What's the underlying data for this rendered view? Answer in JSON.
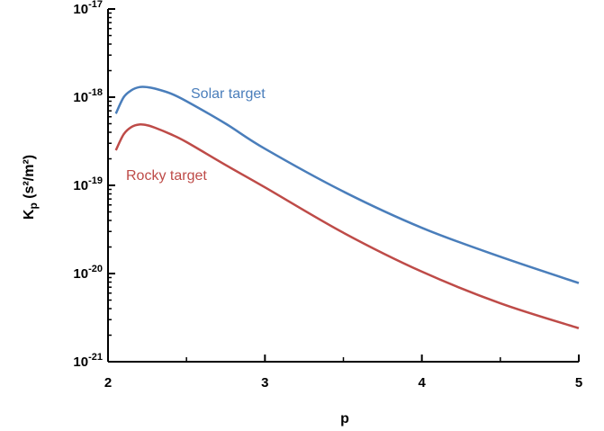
{
  "chart_data": {
    "type": "line",
    "xlabel": "p",
    "ylabel_main": "K",
    "ylabel_sub": "p",
    "ylabel_unit": " (s²/m²)",
    "xlim": [
      2,
      5
    ],
    "ylim": [
      1e-21,
      1e-17
    ],
    "yscale": "log",
    "grid": false,
    "x_ticks": [
      {
        "value": 2,
        "label": "2"
      },
      {
        "value": 3,
        "label": "3"
      },
      {
        "value": 4,
        "label": "4"
      },
      {
        "value": 5,
        "label": "5"
      }
    ],
    "y_ticks": [
      {
        "value": 1e-21,
        "base": "10",
        "exp": "-21"
      },
      {
        "value": 1e-20,
        "base": "10",
        "exp": "-20"
      },
      {
        "value": 1e-19,
        "base": "10",
        "exp": "-19"
      },
      {
        "value": 1e-18,
        "base": "10",
        "exp": "-18"
      },
      {
        "value": 1e-17,
        "base": "10",
        "exp": "-17"
      }
    ],
    "series": [
      {
        "name": "Solar target",
        "color": "#4a7ebb",
        "x": [
          2.05,
          2.1,
          2.15,
          2.2,
          2.25,
          2.3,
          2.4,
          2.5,
          2.75,
          3.0,
          3.5,
          4.0,
          4.5,
          5.0
        ],
        "y": [
          6.5e-19,
          1e-18,
          1.2e-18,
          1.3e-18,
          1.3e-18,
          1.25e-18,
          1.1e-18,
          9e-19,
          5e-19,
          2.6e-19,
          8.5e-20,
          3.3e-20,
          1.55e-20,
          7.8e-21
        ]
      },
      {
        "name": "Rocky target",
        "color": "#be4b48",
        "x": [
          2.05,
          2.1,
          2.15,
          2.2,
          2.25,
          2.3,
          2.4,
          2.5,
          2.75,
          3.0,
          3.5,
          4.0,
          4.5,
          5.0
        ],
        "y": [
          2.5e-19,
          3.8e-19,
          4.6e-19,
          4.9e-19,
          4.8e-19,
          4.5e-19,
          3.8e-19,
          3.1e-19,
          1.7e-19,
          9.5e-20,
          2.9e-20,
          1.05e-20,
          4.6e-21,
          2.4e-21
        ]
      }
    ]
  }
}
